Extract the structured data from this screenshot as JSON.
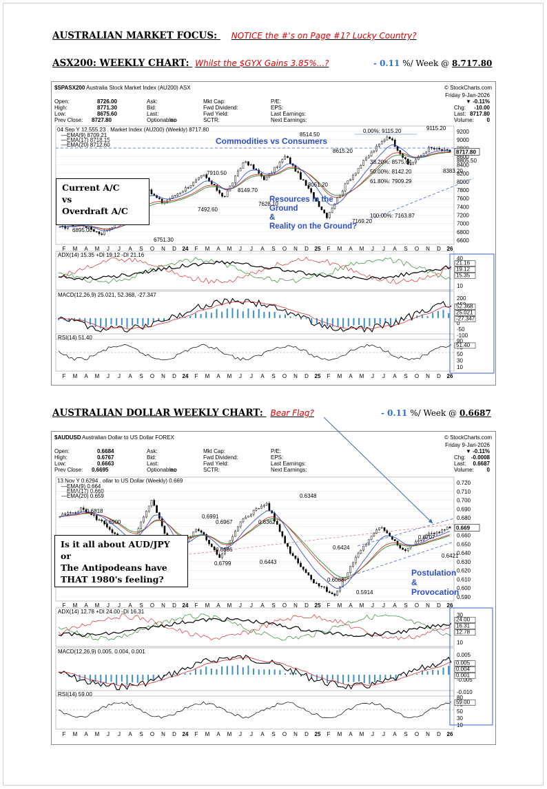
{
  "headers": {
    "market_focus": "AUSTRALIAN MARKET FOCUS:",
    "market_focus_note": "NOTICE the #'s on Page #1? Lucky Country?",
    "asx_title": "ASX200: WEEKLY CHART:",
    "asx_note": "Whilst the $GYX Gains 3.85%...?",
    "asx_change": "- 0.11",
    "asx_week_label": "%/ Week @",
    "asx_week_value": "8.717.80",
    "aud_title": "AUSTRALIAN DOLLAR WEEKLY CHART:",
    "aud_note": "Bear Flag?",
    "aud_change": "- 0.11",
    "aud_week_label": "%/ Week @",
    "aud_week_value": "0.6687"
  },
  "asx_chart": {
    "symbol": "$SPASX200",
    "name": "Australia Stock Market Index (AU200)",
    "exchange": "ASX",
    "source": "© StockCharts.com",
    "date": "Friday  9-Jan-2026",
    "quote": {
      "open": "8726.00",
      "high": "8771.30",
      "low": "8675.60",
      "prev_close": "8727.80",
      "chg_pct": "-0.11%",
      "chg": "-10.00",
      "last": "8717.80",
      "volume": "0"
    },
    "legend": {
      "line1": "04 Sep Y 12,555.23 . Market Index (AU200) (Weekly) 8717.80",
      "ema9": "EMA(9) 8709.21",
      "ema17": "EMA(17) 8718.15",
      "ema20": "EMA(20) 8712.60"
    },
    "annotations": {
      "commodities": "Commodities vs Consumers",
      "resources": "Resources in the Ground",
      "amp": "&",
      "reality": "Reality on the Ground?"
    },
    "callout": {
      "line1": "Current A/C",
      "line2": "vs",
      "line3": "Overdraft A/C"
    },
    "fib": {
      "top": "0.00%: 9115.20",
      "mid1": "38.20%: 8575.64",
      "mid2": "50.00%: 8142.20",
      "mid3": "61.80%: 7909.29",
      "bottom": "100.00%: 7163.87"
    },
    "price_labels": [
      "6895.00",
      "6998.10",
      "6751.30",
      "7910.50",
      "7492.60",
      "8149.70",
      "7628.10",
      "8514.50",
      "8051.20",
      "8615.20",
      "7169.20",
      "9115.20",
      "8805.50",
      "8383.20"
    ],
    "y_ticks": [
      "9200",
      "9000",
      "8800",
      "8600",
      "8400",
      "8200",
      "8000",
      "7800",
      "7600",
      "7400",
      "7200",
      "7000",
      "6800",
      "6600"
    ],
    "x_labels": [
      "F",
      "M",
      "A",
      "M",
      "J",
      "J",
      "A",
      "S",
      "O",
      "N",
      "D",
      "24",
      "F",
      "M",
      "A",
      "M",
      "J",
      "J",
      "A",
      "S",
      "O",
      "N",
      "D",
      "25",
      "F",
      "M",
      "A",
      "M",
      "J",
      "J",
      "A",
      "S",
      "O",
      "N",
      "D",
      "26"
    ],
    "last_tag": "8717.80",
    "adx": {
      "label": "ADX(14) 15.35 +DI 19.12 -DI 21.16",
      "ticks": [
        "40",
        "30",
        "20",
        "10"
      ],
      "tags": [
        "21.16",
        "19.12",
        "15.35"
      ]
    },
    "macd": {
      "label": "MACD(12,26,9) 25.021, 52.368, -27.347",
      "ticks": [
        "200",
        "150",
        "100",
        "50",
        "0",
        "-50",
        "-100"
      ],
      "tags": [
        "52.368",
        "25.021",
        "-27.347"
      ]
    },
    "rsi": {
      "label": "RSI(14) 51.40",
      "ticks": [
        "90",
        "70",
        "50",
        "30",
        "10"
      ],
      "tag": "51.40"
    }
  },
  "aud_chart": {
    "symbol": "$AUDUSD",
    "name": "Australian Dollar to US Dollar",
    "exchange": "FOREX",
    "source": "© StockCharts.com",
    "date": "Friday  9-Jan-2026",
    "quote": {
      "open": "0.6684",
      "high": "0.6767",
      "low": "0.6663",
      "prev_close": "0.6695",
      "chg_pct": "-0.11%",
      "chg": "-0.0008",
      "last": "0.6687",
      "volume": "0"
    },
    "legend": {
      "line1": "13 Nov Y 0.6294 . ollar to US Dollar (Weekly) 0.669",
      "ema9": "EMA(9) 0.664",
      "ema17": "EMA(17) 0.660",
      "ema20": "EMA(20) 0.659"
    },
    "annotations": {
      "postulation": "Postulation",
      "amp": "&",
      "provocation": "Provocation"
    },
    "callout": {
      "line1": "Is it all about AUD/JPY",
      "line2": "or",
      "line3": "The Antipodeans have",
      "line4": "THAT 1980's feeling?"
    },
    "price_labels": [
      "0.6900",
      "0.6818",
      "0.6991",
      "0.6686",
      "0.6799",
      "0.6967",
      "0.6443",
      "0.6362",
      "0.6348",
      "0.6424",
      "0.6088",
      "0.5914",
      "0.6707",
      "0.6421"
    ],
    "y_ticks": [
      "0.720",
      "0.710",
      "0.700",
      "0.690",
      "0.680",
      "0.670",
      "0.660",
      "0.650",
      "0.640",
      "0.630",
      "0.620",
      "0.610",
      "0.600",
      "0.590"
    ],
    "x_labels": [
      "F",
      "M",
      "A",
      "M",
      "J",
      "J",
      "A",
      "S",
      "O",
      "N",
      "D",
      "24",
      "F",
      "M",
      "A",
      "M",
      "J",
      "J",
      "A",
      "S",
      "O",
      "N",
      "D",
      "25",
      "F",
      "M",
      "A",
      "M",
      "J",
      "J",
      "A",
      "S",
      "O",
      "N",
      "D",
      "26"
    ],
    "last_tag": "0.669",
    "adx": {
      "label": "ADX(14) 12.78 +DI 24.00 -DI 16.31",
      "ticks": [
        "30",
        "20",
        "10"
      ],
      "tags": [
        "24.00",
        "16.31",
        "12.78"
      ]
    },
    "macd": {
      "label": "MACD(12,26,9) 0.005, 0.004, 0.001",
      "ticks": [
        "0.005",
        "0.000",
        "-0.005",
        "-0.010"
      ],
      "tags": [
        "0.005",
        "0.004",
        "0.001"
      ]
    },
    "rsi": {
      "label": "RSI(14) 59.00",
      "ticks": [
        "80",
        "70",
        "50",
        "30",
        "10"
      ],
      "tag": "59.00"
    }
  },
  "chart_data": [
    {
      "type": "line",
      "title": "$SPASX200 Australia Stock Market Index (AU200) ASX",
      "series": [
        {
          "name": "Market Index (AU200) (Weekly)",
          "values": [
            6895.0,
            6998.1,
            6751.3,
            7910.5,
            7492.6,
            8149.7,
            7628.1,
            8514.5,
            8051.2,
            8615.2,
            7169.2,
            9115.2,
            8383.2,
            8805.5,
            8717.8
          ]
        }
      ],
      "ylim": [
        6600,
        9200
      ]
    },
    {
      "type": "line",
      "title": "$AUDUSD Australian Dollar to US Dollar FOREX",
      "series": [
        {
          "name": "ollar to US Dollar (Weekly)",
          "values": [
            0.6818,
            0.69,
            0.6443,
            0.6991,
            0.6362,
            0.6686,
            0.6348,
            0.6799,
            0.6967,
            0.6424,
            0.6088,
            0.5914,
            0.6707,
            0.6421,
            0.6687
          ]
        }
      ],
      "ylim": [
        0.59,
        0.72
      ]
    }
  ]
}
